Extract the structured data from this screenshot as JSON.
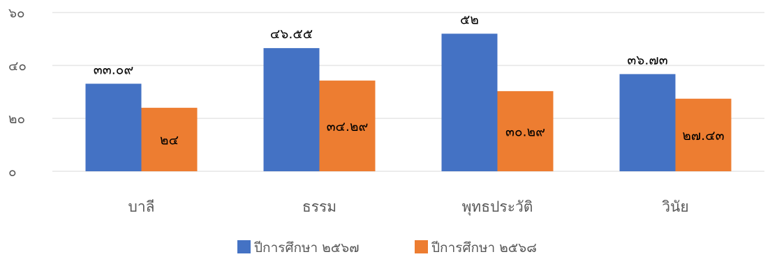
{
  "chart_data": {
    "type": "bar",
    "categories": [
      "บาลี",
      "ธรรม",
      "พุทธประวัติ",
      "วินัย"
    ],
    "series": [
      {
        "name": "ปีการศึกษา ๒๕๖๗",
        "values": [
          33.09,
          46.55,
          52,
          36.73
        ],
        "labels": [
          "๓๓.๐๙",
          "๔๖.๕๕",
          "๕๒",
          "๓๖.๗๓"
        ],
        "color": "#4472C4"
      },
      {
        "name": "ปีการศึกษา ๒๕๖๘",
        "values": [
          24,
          34.29,
          30.29,
          27.43
        ],
        "labels": [
          "๒๔",
          "๓๔.๒๙",
          "๓๐.๒๙",
          "๒๗.๔๓"
        ],
        "color": "#ED7D31"
      }
    ],
    "ylim": [
      0,
      60
    ],
    "yticks": [
      0,
      20,
      40,
      60
    ],
    "ytick_labels": [
      "๐",
      "๒๐",
      "๔๐",
      "๖๐"
    ],
    "grid": true,
    "legend": "bottom",
    "gridline_color": "#D9D9D9"
  }
}
